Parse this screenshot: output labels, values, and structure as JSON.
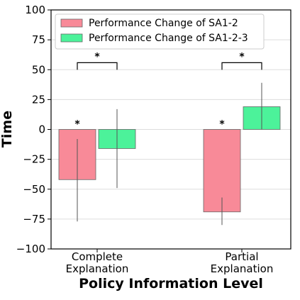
{
  "chart_data": {
    "type": "bar",
    "ylabel": "Time",
    "xlabel": "Policy Information Level",
    "ylim": [
      -100,
      100
    ],
    "yticks": [
      100,
      75,
      50,
      25,
      0,
      -25,
      -50,
      -75,
      -100
    ],
    "ytick_labels": [
      "100",
      "75",
      "50",
      "25",
      "0",
      "−25",
      "−50",
      "−75",
      "−100"
    ],
    "grid": "horizontal",
    "legend_position": "top-left",
    "categories": [
      [
        "Complete",
        "Explanation"
      ],
      [
        "Partial",
        "Explanation"
      ]
    ],
    "series": [
      {
        "name": "Performance Change of SA1-2",
        "color": "#f88a98",
        "values": [
          -42,
          -69
        ],
        "error_low": [
          -77,
          -80
        ],
        "error_high": [
          -8,
          -57
        ],
        "markers": [
          "*",
          "*"
        ]
      },
      {
        "name": "Performance Change of SA1-2-3",
        "color": "#4cf29a",
        "values": [
          -16,
          19
        ],
        "error_low": [
          -49,
          0
        ],
        "error_high": [
          17,
          39
        ],
        "markers": [
          "",
          ""
        ]
      }
    ],
    "significance_brackets": [
      {
        "category": 0,
        "label": "*",
        "y": 60
      },
      {
        "category": 1,
        "label": "*",
        "y": 60
      }
    ]
  }
}
